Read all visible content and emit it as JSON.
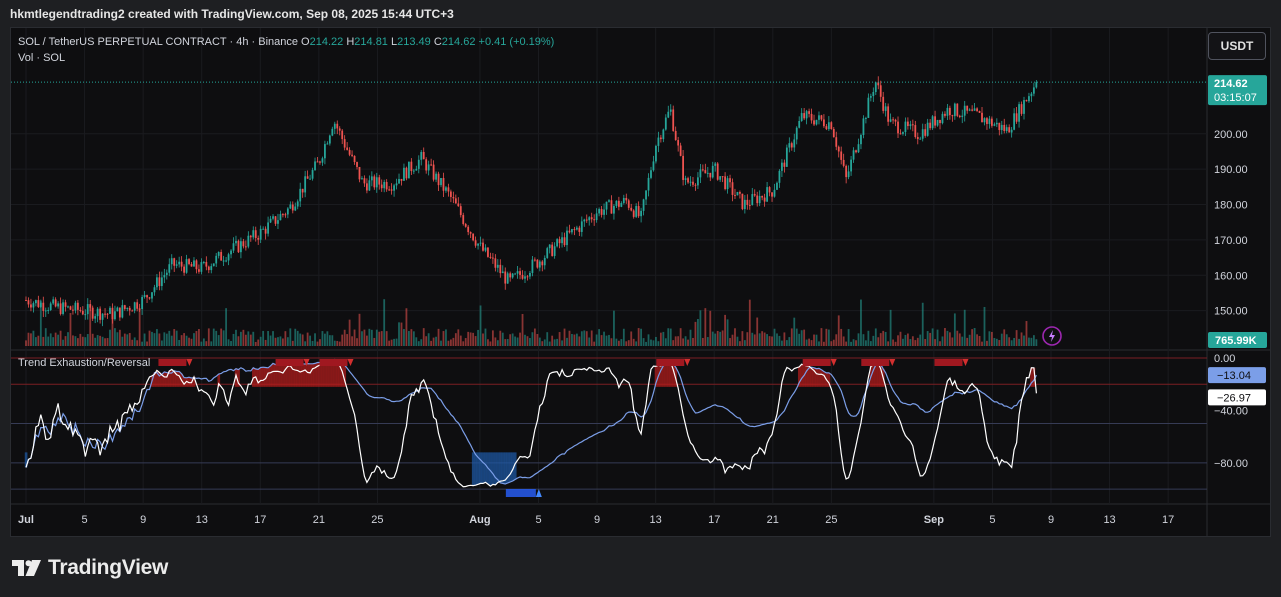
{
  "header": {
    "text": "hkmtlegendtrading2 created with TradingView.com, Sep 08, 2025 15:44 UTC+3"
  },
  "legend": {
    "symbol": "SOL / TetherUS PERPETUAL CONTRACT · 4h · Binance",
    "o_label": "O",
    "o_value": "214.22",
    "h_label": "H",
    "h_value": "214.81",
    "l_label": "L",
    "l_value": "213.49",
    "c_label": "C",
    "c_value": "214.62",
    "change": "+0.41 (+0.19%)",
    "vol": "Vol · SOL",
    "indicator": "Trend Exhaustion/Reversal"
  },
  "currency_button": "USDT",
  "price_badge": {
    "price": "214.62",
    "countdown": "03:15:07"
  },
  "volume_badge": "765.99K",
  "osc_badges": {
    "upper": "−13.04",
    "lower": "−26.97"
  },
  "logo_text": "TradingView",
  "icons": {
    "lightning": "lightning-icon",
    "logo": "tradingview-logo-icon"
  },
  "colors": {
    "up": "#26a69a",
    "down": "#ef5350",
    "fast_line": "#ffffff",
    "slow_line": "#7b9ee8",
    "bearish_fill": "#b71c1c",
    "bullish_fill": "#1e5aa8",
    "background": "#0e0e10"
  },
  "chart_data": [
    {
      "type": "candlestick",
      "title": "SOL / TetherUS PERPETUAL CONTRACT · 4h · Binance",
      "x_tick_labels": [
        "Jul",
        "5",
        "9",
        "13",
        "17",
        "21",
        "25",
        "Aug",
        "5",
        "9",
        "13",
        "17",
        "21",
        "25",
        "Sep",
        "5",
        "9",
        "13",
        "17"
      ],
      "y_tick_labels": [
        "150.00",
        "160.00",
        "170.00",
        "180.00",
        "190.00",
        "200.00"
      ],
      "ylim": [
        140,
        222
      ],
      "grid": true,
      "approx_close_path": [
        {
          "date": "2025-07-01",
          "close": 153
        },
        {
          "date": "2025-07-03",
          "close": 151
        },
        {
          "date": "2025-07-05",
          "close": 150
        },
        {
          "date": "2025-07-07",
          "close": 149
        },
        {
          "date": "2025-07-09",
          "close": 153
        },
        {
          "date": "2025-07-11",
          "close": 163
        },
        {
          "date": "2025-07-13",
          "close": 162
        },
        {
          "date": "2025-07-15",
          "close": 167
        },
        {
          "date": "2025-07-17",
          "close": 172
        },
        {
          "date": "2025-07-19",
          "close": 179
        },
        {
          "date": "2025-07-21",
          "close": 192
        },
        {
          "date": "2025-07-22",
          "close": 204
        },
        {
          "date": "2025-07-24",
          "close": 186
        },
        {
          "date": "2025-07-26",
          "close": 186
        },
        {
          "date": "2025-07-28",
          "close": 193
        },
        {
          "date": "2025-07-30",
          "close": 182
        },
        {
          "date": "2025-08-01",
          "close": 168
        },
        {
          "date": "2025-08-03",
          "close": 158
        },
        {
          "date": "2025-08-05",
          "close": 164
        },
        {
          "date": "2025-08-07",
          "close": 171
        },
        {
          "date": "2025-08-09",
          "close": 178
        },
        {
          "date": "2025-08-11",
          "close": 181
        },
        {
          "date": "2025-08-12",
          "close": 176
        },
        {
          "date": "2025-08-13",
          "close": 197
        },
        {
          "date": "2025-08-14",
          "close": 207
        },
        {
          "date": "2025-08-15",
          "close": 186
        },
        {
          "date": "2025-08-17",
          "close": 190
        },
        {
          "date": "2025-08-19",
          "close": 180
        },
        {
          "date": "2025-08-21",
          "close": 184
        },
        {
          "date": "2025-08-23",
          "close": 205
        },
        {
          "date": "2025-08-25",
          "close": 203
        },
        {
          "date": "2025-08-26",
          "close": 187
        },
        {
          "date": "2025-08-28",
          "close": 215
        },
        {
          "date": "2025-08-29",
          "close": 203
        },
        {
          "date": "2025-08-31",
          "close": 200
        },
        {
          "date": "2025-09-02",
          "close": 207
        },
        {
          "date": "2025-09-04",
          "close": 205
        },
        {
          "date": "2025-09-06",
          "close": 201
        },
        {
          "date": "2025-09-08",
          "close": 214.62
        }
      ],
      "last_price": 214.62
    },
    {
      "type": "line",
      "title": "Trend Exhaustion/Reversal",
      "y_tick_labels": [
        "0.00",
        "−40.00",
        "−80.00"
      ],
      "ylim": [
        -103,
        0
      ],
      "levels": [
        0,
        -20,
        -50,
        -80,
        -100
      ],
      "last_values": {
        "slow": -13.04,
        "fast": -26.97
      },
      "signals": [
        {
          "date": "2025-07-11",
          "kind": "bearish"
        },
        {
          "date": "2025-07-19",
          "kind": "bearish"
        },
        {
          "date": "2025-07-22",
          "kind": "bearish"
        },
        {
          "date": "2025-08-04",
          "kind": "bullish"
        },
        {
          "date": "2025-08-14",
          "kind": "bearish"
        },
        {
          "date": "2025-08-24",
          "kind": "bearish"
        },
        {
          "date": "2025-08-28",
          "kind": "bearish"
        },
        {
          "date": "2025-09-02",
          "kind": "bearish"
        }
      ]
    }
  ]
}
